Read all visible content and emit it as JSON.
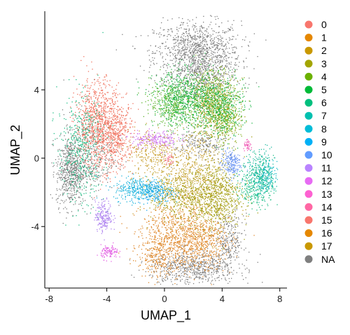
{
  "chart_data": {
    "type": "scatter",
    "title": "",
    "xlabel": "UMAP_1",
    "ylabel": "UMAP_2",
    "xlim": [
      -8.3,
      8.5
    ],
    "ylim": [
      -7.6,
      8.6
    ],
    "x_ticks": [
      -8,
      -4,
      0,
      4,
      8
    ],
    "x_tick_labels": [
      "-8",
      "-4",
      "0",
      "4",
      "8"
    ],
    "y_ticks": [
      -4,
      0,
      4
    ],
    "y_tick_labels": [
      "-4",
      "0",
      "4"
    ],
    "grid": false,
    "legend_position": "right",
    "legend": [
      {
        "label": "0",
        "color": "#F8766D"
      },
      {
        "label": "1",
        "color": "#E58700"
      },
      {
        "label": "2",
        "color": "#C99800"
      },
      {
        "label": "3",
        "color": "#A3A500"
      },
      {
        "label": "4",
        "color": "#6BB100"
      },
      {
        "label": "5",
        "color": "#00BA38"
      },
      {
        "label": "6",
        "color": "#00BF7D"
      },
      {
        "label": "7",
        "color": "#00C0AF"
      },
      {
        "label": "8",
        "color": "#00BCD8"
      },
      {
        "label": "9",
        "color": "#00B0F6"
      },
      {
        "label": "10",
        "color": "#619CFF"
      },
      {
        "label": "11",
        "color": "#B983FF"
      },
      {
        "label": "12",
        "color": "#E76BF3"
      },
      {
        "label": "13",
        "color": "#FD61D1"
      },
      {
        "label": "14",
        "color": "#FF67A4"
      },
      {
        "label": "15",
        "color": "#F8766D"
      },
      {
        "label": "16",
        "color": "#E58700"
      },
      {
        "label": "17",
        "color": "#C99800"
      },
      {
        "label": "NA",
        "color": "#7F7F7F"
      }
    ],
    "series": [
      {
        "group": "0",
        "color": "#F0735F",
        "clusters": [
          {
            "cx": -4.6,
            "cy": 2.0,
            "sx": 0.8,
            "sy": 1.3,
            "n": 900
          },
          {
            "cx": -3.3,
            "cy": 1.3,
            "sx": 0.6,
            "sy": 0.9,
            "n": 400
          }
        ]
      },
      {
        "group": "1",
        "color": "#E08A2E",
        "clusters": [
          {
            "cx": 1.2,
            "cy": -4.6,
            "sx": 1.4,
            "sy": 1.0,
            "n": 900
          },
          {
            "cx": -0.5,
            "cy": -5.6,
            "sx": 0.7,
            "sy": 0.8,
            "n": 250
          },
          {
            "cx": 2.8,
            "cy": -5.0,
            "sx": 0.8,
            "sy": 0.7,
            "n": 250
          }
        ]
      },
      {
        "group": "2",
        "color": "#C8A030",
        "clusters": [
          {
            "cx": 1.8,
            "cy": -1.3,
            "sx": 1.2,
            "sy": 1.3,
            "n": 700
          },
          {
            "cx": -0.8,
            "cy": 0.3,
            "sx": 0.9,
            "sy": 0.7,
            "n": 250
          }
        ]
      },
      {
        "group": "3",
        "color": "#A6A21B",
        "clusters": [
          {
            "cx": 3.5,
            "cy": -2.2,
            "sx": 0.9,
            "sy": 1.0,
            "n": 800
          },
          {
            "cx": 3.5,
            "cy": 2.8,
            "sx": 0.8,
            "sy": 0.9,
            "n": 550
          },
          {
            "cx": 0.8,
            "cy": -2.2,
            "sx": 0.9,
            "sy": 0.7,
            "n": 300
          }
        ]
      },
      {
        "group": "4",
        "color": "#8BB52A",
        "clusters": [
          {
            "cx": 3.3,
            "cy": 3.6,
            "sx": 0.9,
            "sy": 0.8,
            "n": 450
          },
          {
            "cx": 4.3,
            "cy": 2.0,
            "sx": 0.5,
            "sy": 0.6,
            "n": 200
          }
        ]
      },
      {
        "group": "5",
        "color": "#5FB52F",
        "clusters": [
          {
            "cx": 0.6,
            "cy": 3.2,
            "sx": 0.8,
            "sy": 0.7,
            "n": 400
          }
        ]
      },
      {
        "group": "6",
        "color": "#24B84A",
        "clusters": [
          {
            "cx": 1.5,
            "cy": 3.5,
            "sx": 1.1,
            "sy": 0.8,
            "n": 650
          },
          {
            "cx": 3.9,
            "cy": 3.1,
            "sx": 0.8,
            "sy": 0.9,
            "n": 450
          }
        ]
      },
      {
        "group": "7",
        "color": "#1FBF86",
        "clusters": [
          {
            "cx": -5.8,
            "cy": 0.5,
            "sx": 0.8,
            "sy": 1.6,
            "n": 450
          },
          {
            "cx": 6.4,
            "cy": -1.5,
            "sx": 0.6,
            "sy": 0.7,
            "n": 300
          }
        ]
      },
      {
        "group": "8",
        "color": "#1EBBA0",
        "clusters": [
          {
            "cx": 6.7,
            "cy": -0.9,
            "sx": 0.5,
            "sy": 0.7,
            "n": 250
          }
        ]
      },
      {
        "group": "9",
        "color": "#22BFC8",
        "clusters": [
          {
            "cx": 7.0,
            "cy": -1.2,
            "sx": 0.4,
            "sy": 0.5,
            "n": 120
          }
        ]
      },
      {
        "group": "10",
        "color": "#1FB5DC",
        "clusters": [
          {
            "cx": -1.7,
            "cy": -1.8,
            "sx": 0.9,
            "sy": 0.35,
            "n": 350
          }
        ]
      },
      {
        "group": "11",
        "color": "#1FA6EE",
        "clusters": [
          {
            "cx": -0.6,
            "cy": -2.0,
            "sx": 0.6,
            "sy": 0.35,
            "n": 150
          }
        ]
      },
      {
        "group": "12",
        "color": "#6F98F3",
        "clusters": [
          {
            "cx": 4.6,
            "cy": -0.3,
            "sx": 0.35,
            "sy": 0.4,
            "n": 200
          }
        ]
      },
      {
        "group": "13",
        "color": "#B085F0",
        "clusters": [
          {
            "cx": -4.2,
            "cy": -3.4,
            "sx": 0.3,
            "sy": 0.45,
            "n": 200
          }
        ]
      },
      {
        "group": "14",
        "color": "#CF77EE",
        "clusters": [
          {
            "cx": -0.7,
            "cy": 1.1,
            "sx": 0.8,
            "sy": 0.25,
            "n": 200
          }
        ]
      },
      {
        "group": "15",
        "color": "#E466E4",
        "clusters": [
          {
            "cx": -3.8,
            "cy": -5.5,
            "sx": 0.3,
            "sy": 0.2,
            "n": 110
          }
        ]
      },
      {
        "group": "16",
        "color": "#F060B8",
        "clusters": [
          {
            "cx": 5.8,
            "cy": 0.7,
            "sx": 0.15,
            "sy": 0.15,
            "n": 40
          }
        ]
      },
      {
        "group": "17",
        "color": "#F26E88",
        "clusters": [
          {
            "cx": 0.3,
            "cy": -0.1,
            "sx": 0.2,
            "sy": 0.2,
            "n": 30
          }
        ]
      },
      {
        "group": "NA",
        "color": "#7F7F7F",
        "clusters": [
          {
            "cx": 2.3,
            "cy": 6.2,
            "sx": 1.5,
            "sy": 0.9,
            "n": 1100
          },
          {
            "cx": 2.6,
            "cy": 4.6,
            "sx": 1.1,
            "sy": 0.7,
            "n": 350
          },
          {
            "cx": -6.5,
            "cy": -0.8,
            "sx": 0.5,
            "sy": 1.0,
            "n": 600
          },
          {
            "cx": -5.2,
            "cy": 0.3,
            "sx": 0.9,
            "sy": 1.2,
            "n": 350
          },
          {
            "cx": 2.0,
            "cy": -6.4,
            "sx": 1.5,
            "sy": 0.5,
            "n": 650
          },
          {
            "cx": 4.5,
            "cy": -4.9,
            "sx": 0.5,
            "sy": 0.8,
            "n": 250
          },
          {
            "cx": 2.5,
            "cy": 0.8,
            "sx": 0.9,
            "sy": 0.5,
            "n": 200
          }
        ]
      }
    ]
  }
}
